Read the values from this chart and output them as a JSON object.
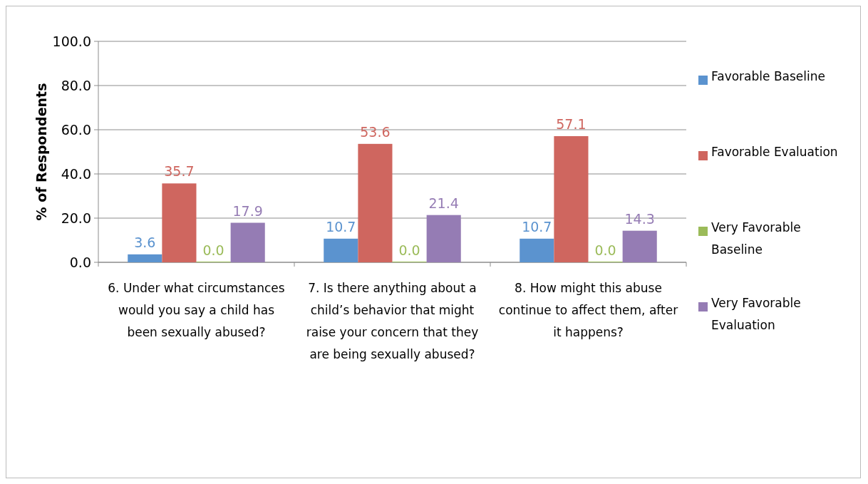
{
  "chart_data": {
    "type": "bar",
    "ylabel": "% of Respondents",
    "categories": [
      "6. Under what circumstances would you say a child has been sexually abused?",
      "7. Is there anything about a child’s behavior that might raise your concern that they are being sexually abused?",
      "8. How might this abuse continue to affect them, after it happens?"
    ],
    "series": [
      {
        "name": "Favorable Baseline",
        "color": "#5b93cf",
        "values": [
          3.6,
          10.7,
          10.7
        ],
        "value_labels": [
          "3.6",
          "10.7",
          "10.7"
        ]
      },
      {
        "name": "Favorable Evaluation",
        "color": "#cf665f",
        "values": [
          35.7,
          53.6,
          57.1
        ],
        "value_labels": [
          "35.7",
          "53.6",
          "57.1"
        ]
      },
      {
        "name": "Very Favorable Baseline",
        "color": "#9bbb59",
        "values": [
          0,
          0,
          0
        ],
        "value_labels": [
          "0.0",
          "0.0",
          "0.0"
        ]
      },
      {
        "name": "Very Favorable Evaluation",
        "color": "#957cb4",
        "values": [
          17.9,
          21.4,
          14.3
        ],
        "value_labels": [
          "17.9",
          "21.4",
          "14.3"
        ]
      }
    ],
    "ylim": [
      0,
      100
    ],
    "yticks": [
      {
        "value": 0,
        "label": "0.0"
      },
      {
        "value": 20,
        "label": "20.0"
      },
      {
        "value": 40,
        "label": "40.0"
      },
      {
        "value": 60,
        "label": "60.0"
      },
      {
        "value": 80,
        "label": "80.0"
      },
      {
        "value": 100,
        "label": "100.0"
      }
    ],
    "grid": "y",
    "legend": "right"
  }
}
